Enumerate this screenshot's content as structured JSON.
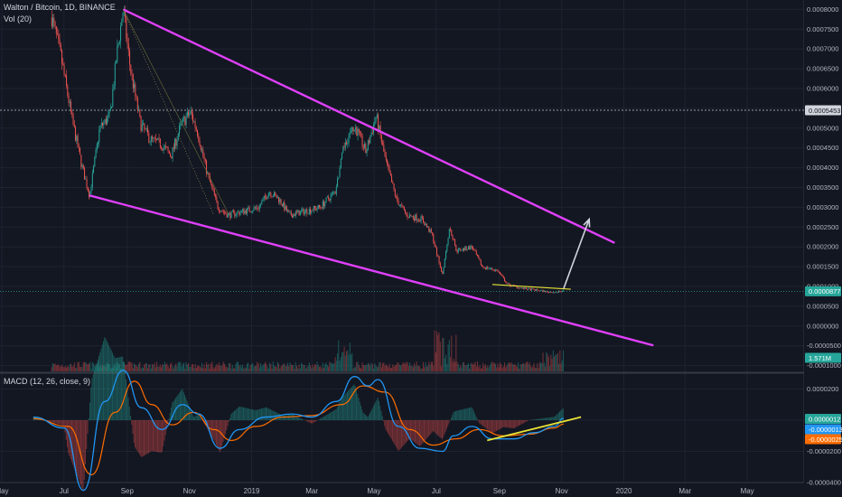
{
  "header": {
    "symbol": "Walton / Bitcoin, 1D, BINANCE",
    "volume_label": "Vol (20)",
    "macd_label": "MACD (12, 26, close, 9)"
  },
  "colors": {
    "background": "#131722",
    "grid": "#1f2330",
    "up": "#26a69a",
    "down": "#ef5350",
    "wedge": "#e040fb",
    "arrow": "#d1d4dc",
    "yellow": "#e8e336",
    "macd": "#2196f3",
    "signal": "#ff6d00"
  },
  "chart_data": [
    {
      "type": "line",
      "name": "price",
      "yaxis_ticks": [
        "0.0008000",
        "0.0007500",
        "0.0007000",
        "0.0006500",
        "0.0006000",
        "0.0005500",
        "0.0005000",
        "0.0004500",
        "0.0004000",
        "0.0003500",
        "0.0003000",
        "0.0002500",
        "0.0002000",
        "0.0001500",
        "0.0001000",
        "0.0000500",
        "0.0000000",
        "-0.0000500",
        "-0.0001000"
      ],
      "ylim": [
        -0.000105,
        0.0008125
      ],
      "xaxis_ticks": [
        "May",
        "Jul",
        "Sep",
        "Nov",
        "2019",
        "Mar",
        "May",
        "Jul",
        "Sep",
        "Nov",
        "2020",
        "Mar",
        "May"
      ],
      "price_path": [
        [
          "2018-06-19",
          0.00078
        ],
        [
          "2018-06-28",
          0.00068
        ],
        [
          "2018-07-09",
          0.00052
        ],
        [
          "2018-07-18",
          0.00041
        ],
        [
          "2018-07-26",
          0.00033
        ],
        [
          "2018-08-05",
          0.0005
        ],
        [
          "2018-08-15",
          0.00053
        ],
        [
          "2018-08-22",
          0.00069
        ],
        [
          "2018-08-28",
          0.0008
        ],
        [
          "2018-09-04",
          0.00065
        ],
        [
          "2018-09-14",
          0.00051
        ],
        [
          "2018-09-24",
          0.00047
        ],
        [
          "2018-10-04",
          0.00046
        ],
        [
          "2018-10-14",
          0.00043
        ],
        [
          "2018-10-24",
          0.00051
        ],
        [
          "2018-11-02",
          0.00054
        ],
        [
          "2018-11-09",
          0.00049
        ],
        [
          "2018-11-19",
          0.00038
        ],
        [
          "2018-11-29",
          0.0003
        ],
        [
          "2018-12-09",
          0.00028
        ],
        [
          "2018-12-24",
          0.00029
        ],
        [
          "2019-01-08",
          0.0003
        ],
        [
          "2019-01-18",
          0.00034
        ],
        [
          "2019-01-28",
          0.00032
        ],
        [
          "2019-02-07",
          0.00028
        ],
        [
          "2019-02-22",
          0.00029
        ],
        [
          "2019-03-09",
          0.0003
        ],
        [
          "2019-03-24",
          0.00034
        ],
        [
          "2019-04-03",
          0.00047
        ],
        [
          "2019-04-13",
          0.0005
        ],
        [
          "2019-04-23",
          0.00044
        ],
        [
          "2019-05-03",
          0.00053
        ],
        [
          "2019-05-13",
          0.00041
        ],
        [
          "2019-05-23",
          0.00032
        ],
        [
          "2019-06-02",
          0.00028
        ],
        [
          "2019-06-17",
          0.00027
        ],
        [
          "2019-06-27",
          0.00023
        ],
        [
          "2019-07-07",
          0.00013
        ],
        [
          "2019-07-14",
          0.00025
        ],
        [
          "2019-07-21",
          0.00019
        ],
        [
          "2019-08-05",
          0.0002
        ],
        [
          "2019-08-15",
          0.00015
        ],
        [
          "2019-08-30",
          0.00014
        ],
        [
          "2019-09-09",
          0.000105
        ],
        [
          "2019-09-24",
          9.5e-05
        ],
        [
          "2019-10-09",
          9e-05
        ],
        [
          "2019-10-24",
          8.5e-05
        ],
        [
          "2019-11-03",
          8.77e-05
        ]
      ],
      "wedge_upper": [
        [
          "2018-08-28",
          0.0008
        ],
        [
          "2019-12-23",
          0.00021
        ]
      ],
      "wedge_lower": [
        [
          "2018-07-26",
          0.00033
        ],
        [
          "2020-01-30",
          -4.9e-05
        ]
      ],
      "projection_arrow": [
        [
          "2019-11-03",
          9.5e-05
        ],
        [
          "2019-11-28",
          0.00027
        ]
      ],
      "current_price_label": "0.0000877",
      "price_level_label": "0.0005453",
      "volume_label_value": "1.571M"
    },
    {
      "type": "line",
      "name": "MACD (12, 26, close, 9)",
      "yaxis_ticks": [
        "0.0000200",
        "0.0000000",
        "-0.0000200",
        "-0.0000400"
      ],
      "ylim": [
        -4.5e-05,
        3.8e-05
      ],
      "series": [
        {
          "name": "MACD",
          "points": [
            [
              "2018-06-01",
              2e-06
            ],
            [
              "2018-07-01",
              -5e-06
            ],
            [
              "2018-07-20",
              -4.5e-05
            ],
            [
              "2018-08-10",
              1.2e-05
            ],
            [
              "2018-08-28",
              3.2e-05
            ],
            [
              "2018-09-15",
              8e-06
            ],
            [
              "2018-10-05",
              -6e-06
            ],
            [
              "2018-10-25",
              1e-05
            ],
            [
              "2018-11-10",
              4e-06
            ],
            [
              "2018-12-01",
              -1.8e-05
            ],
            [
              "2018-12-20",
              -6e-06
            ],
            [
              "2019-01-15",
              2e-06
            ],
            [
              "2019-02-10",
              4e-06
            ],
            [
              "2019-03-01",
              2e-06
            ],
            [
              "2019-03-25",
              1.2e-05
            ],
            [
              "2019-04-12",
              2.8e-05
            ],
            [
              "2019-04-25",
              2.2e-05
            ],
            [
              "2019-05-05",
              2.6e-05
            ],
            [
              "2019-05-25",
              -4e-06
            ],
            [
              "2019-06-15",
              -1.8e-05
            ],
            [
              "2019-07-07",
              -2e-05
            ],
            [
              "2019-07-18",
              -1e-05
            ],
            [
              "2019-08-05",
              -4e-06
            ],
            [
              "2019-08-25",
              -1.2e-05
            ],
            [
              "2019-09-15",
              -1.2e-05
            ],
            [
              "2019-10-05",
              -8e-06
            ],
            [
              "2019-10-25",
              -4e-06
            ],
            [
              "2019-11-03",
              1.2e-06
            ]
          ]
        },
        {
          "name": "Signal",
          "points": [
            [
              "2018-06-01",
              1e-06
            ],
            [
              "2018-07-05",
              -4e-06
            ],
            [
              "2018-07-28",
              -3.5e-05
            ],
            [
              "2018-08-20",
              5e-06
            ],
            [
              "2018-09-08",
              2.5e-05
            ],
            [
              "2018-09-25",
              1e-05
            ],
            [
              "2018-10-15",
              -3e-06
            ],
            [
              "2018-11-05",
              5e-06
            ],
            [
              "2018-11-25",
              -6e-06
            ],
            [
              "2018-12-12",
              -1.3e-05
            ],
            [
              "2019-01-05",
              -4e-06
            ],
            [
              "2019-02-01",
              2e-06
            ],
            [
              "2019-03-01",
              3e-06
            ],
            [
              "2019-03-30",
              1e-05
            ],
            [
              "2019-04-20",
              2.2e-05
            ],
            [
              "2019-05-12",
              1.8e-05
            ],
            [
              "2019-06-05",
              -6e-06
            ],
            [
              "2019-06-28",
              -1.6e-05
            ],
            [
              "2019-07-20",
              -1.2e-05
            ],
            [
              "2019-08-12",
              -6e-06
            ],
            [
              "2019-09-05",
              -1e-05
            ],
            [
              "2019-09-30",
              -9e-06
            ],
            [
              "2019-10-25",
              -5e-06
            ],
            [
              "2019-11-03",
              -2.5e-06
            ]
          ]
        }
      ],
      "macd_labels": [
        "0.0000012",
        "-0.0000013",
        "-0.0000025"
      ]
    }
  ]
}
